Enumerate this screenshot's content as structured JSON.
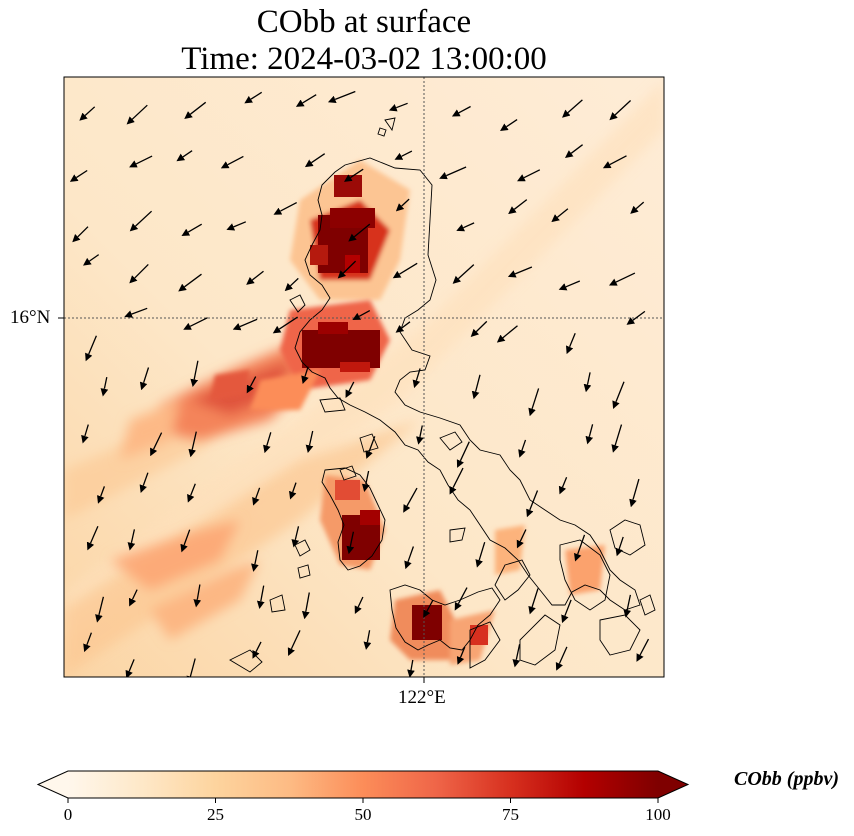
{
  "title": {
    "line1": "CObb at surface",
    "line2": "Time: 2024-03-02 13:00:00"
  },
  "axes": {
    "lat_label": "16°N",
    "lon_label": "122°E"
  },
  "colorbar": {
    "label": "CObb (ppbv)",
    "ticks": [
      "0",
      "25",
      "50",
      "75",
      "100"
    ],
    "range": [
      0,
      100
    ],
    "colormap": "OrRd",
    "extend": "both"
  },
  "map": {
    "field": "CObb",
    "level": "surface",
    "gridlines": "dotted",
    "overlay": "wind vectors",
    "coastlines": true
  }
}
